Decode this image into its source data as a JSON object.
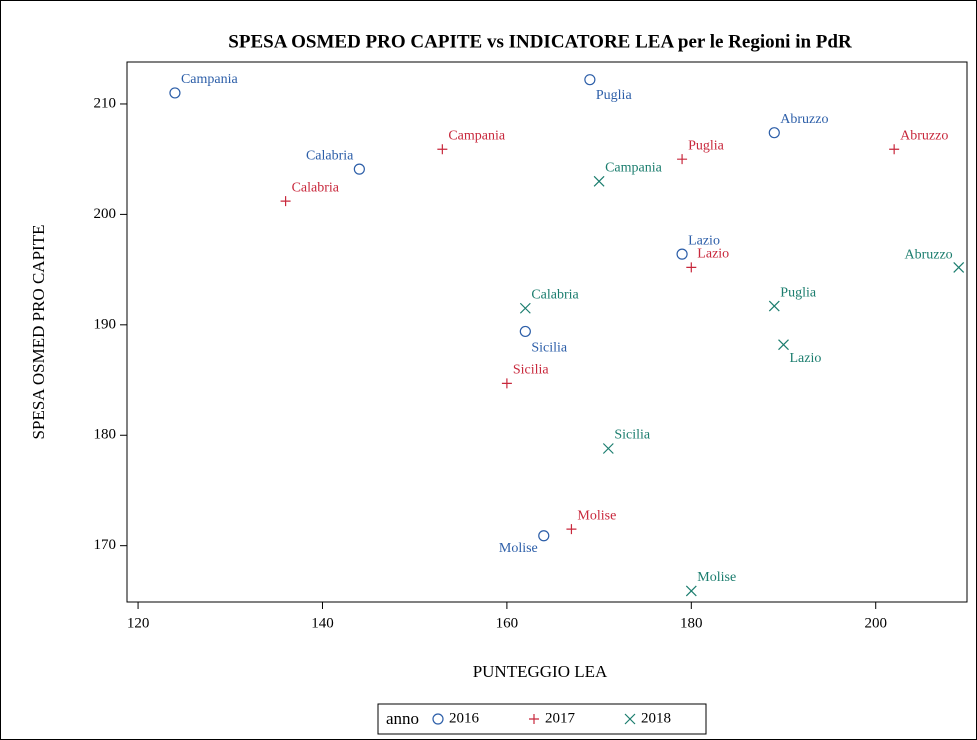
{
  "chart_data": {
    "type": "scatter",
    "title": "SPESA OSMED PRO CAPITE vs INDICATORE LEA per le Regioni in PdR",
    "x_label": "PUNTEGGIO LEA",
    "y_label": "SPESA OSMED PRO CAPITE",
    "legend_title": "anno",
    "legend_position": "bottom",
    "xlim": [
      118.8,
      209.9
    ],
    "xticks": [
      120,
      140,
      160,
      180,
      200
    ],
    "ylim": [
      164.9,
      213.8
    ],
    "yticks": [
      170,
      180,
      190,
      200,
      210
    ],
    "series": [
      {
        "name": "2016",
        "color": "#2c5ea8",
        "marker": "circle",
        "labels": [
          "Campania",
          "Calabria",
          "Puglia",
          "Abruzzo",
          "Lazio",
          "Sicilia",
          "Molise"
        ],
        "x": [
          124,
          144,
          169,
          189,
          179,
          162,
          164
        ],
        "values": [
          211,
          204.1,
          212.2,
          207.4,
          196.4,
          189.4,
          170.9
        ]
      },
      {
        "name": "2017",
        "color": "#c8283c",
        "marker": "plus",
        "labels": [
          "Campania",
          "Calabria",
          "Puglia",
          "Abruzzo",
          "Lazio",
          "Sicilia",
          "Molise"
        ],
        "x": [
          153,
          136,
          179,
          202,
          180,
          160,
          167
        ],
        "values": [
          205.9,
          201.2,
          205,
          205.9,
          195.2,
          184.7,
          171.5
        ]
      },
      {
        "name": "2018",
        "color": "#1b7d6e",
        "marker": "x",
        "labels": [
          "Campania",
          "Calabria",
          "Abruzzo",
          "Puglia",
          "Lazio",
          "Sicilia",
          "Molise"
        ],
        "x": [
          170,
          162,
          209,
          189,
          190,
          171,
          180
        ],
        "values": [
          203,
          191.5,
          195.2,
          191.7,
          188.2,
          178.8,
          165.9
        ]
      }
    ]
  }
}
